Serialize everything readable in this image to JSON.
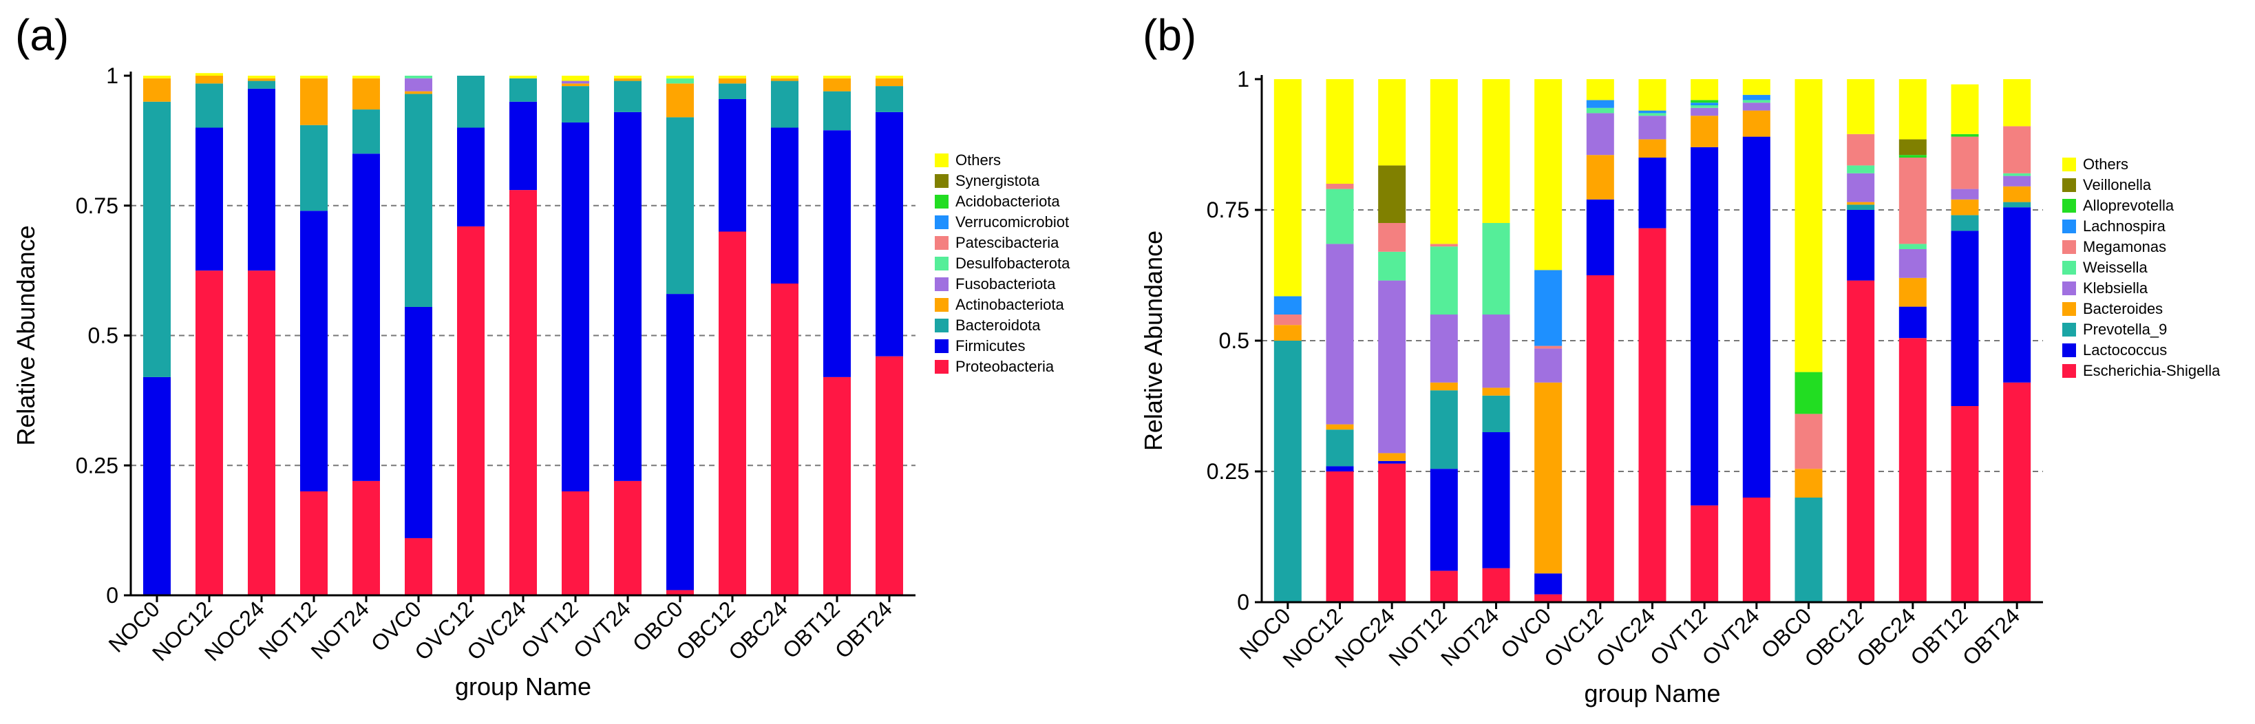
{
  "chart_data": [
    {
      "type": "bar",
      "stacked": true,
      "panel_label": "(a)",
      "xlabel": "group Name",
      "ylabel": "Relative Abundance",
      "ylim": [
        0,
        1
      ],
      "yticks": [
        0,
        0.25,
        0.5,
        0.75,
        1
      ],
      "ytick_labels": [
        "0",
        "0.25",
        "0.5",
        "0.75",
        "1"
      ],
      "grid": "horizontal-dashed",
      "legend_position": "right",
      "categories": [
        "NOC0",
        "NOC12",
        "NOC24",
        "NOT12",
        "NOT24",
        "OVC0",
        "OVC12",
        "OVC24",
        "OVT12",
        "OVT24",
        "OBC0",
        "OBC12",
        "OBC24",
        "OBT12",
        "OBT24"
      ],
      "series": [
        {
          "name": "Proteobacteria",
          "color": "#ff1744",
          "values": [
            0.0,
            0.625,
            0.625,
            0.2,
            0.22,
            0.11,
            0.71,
            0.78,
            0.2,
            0.22,
            0.01,
            0.7,
            0.6,
            0.42,
            0.46
          ]
        },
        {
          "name": "Firmicutes",
          "color": "#0000ee",
          "values": [
            0.42,
            0.275,
            0.35,
            0.54,
            0.63,
            0.445,
            0.19,
            0.17,
            0.71,
            0.71,
            0.57,
            0.255,
            0.3,
            0.475,
            0.47
          ]
        },
        {
          "name": "Bacteroidota",
          "color": "#1aa5a5",
          "values": [
            0.53,
            0.085,
            0.015,
            0.165,
            0.085,
            0.41,
            0.1,
            0.045,
            0.07,
            0.06,
            0.34,
            0.03,
            0.09,
            0.075,
            0.05
          ]
        },
        {
          "name": "Actinobacteriota",
          "color": "#ffa500",
          "values": [
            0.045,
            0.015,
            0.005,
            0.09,
            0.06,
            0.005,
            0.0,
            0.0,
            0.005,
            0.005,
            0.065,
            0.01,
            0.005,
            0.025,
            0.015
          ]
        },
        {
          "name": "Fusobacteriota",
          "color": "#a070e0",
          "values": [
            0.0,
            0.0,
            0.0,
            0.0,
            0.0,
            0.025,
            0.0,
            0.0,
            0.005,
            0.0,
            0.0,
            0.0,
            0.0,
            0.0,
            0.0
          ]
        },
        {
          "name": "Desulfobacterota",
          "color": "#55ee99",
          "values": [
            0.0,
            0.0,
            0.0,
            0.0,
            0.0,
            0.005,
            0.0,
            0.0,
            0.0,
            0.0,
            0.01,
            0.0,
            0.0,
            0.0,
            0.0
          ]
        },
        {
          "name": "Patescibacteria",
          "color": "#f48080",
          "values": [
            0,
            0,
            0,
            0,
            0,
            0,
            0,
            0,
            0,
            0,
            0,
            0,
            0,
            0,
            0
          ]
        },
        {
          "name": "Verrucomicrobiot",
          "color": "#1e90ff",
          "values": [
            0,
            0,
            0,
            0,
            0,
            0,
            0,
            0,
            0,
            0,
            0,
            0,
            0,
            0,
            0
          ]
        },
        {
          "name": "Acidobacteriota",
          "color": "#22dd22",
          "values": [
            0,
            0,
            0,
            0,
            0,
            0,
            0,
            0,
            0,
            0,
            0,
            0,
            0,
            0,
            0
          ]
        },
        {
          "name": "Synergistota",
          "color": "#808000",
          "values": [
            0,
            0,
            0,
            0,
            0,
            0,
            0,
            0,
            0,
            0,
            0,
            0,
            0,
            0,
            0
          ]
        },
        {
          "name": "Others",
          "color": "#ffff00",
          "values": [
            0.005,
            0.005,
            0.005,
            0.005,
            0.005,
            0.0,
            0.0,
            0.005,
            0.01,
            0.005,
            0.005,
            0.005,
            0.005,
            0.005,
            0.005
          ]
        }
      ]
    },
    {
      "type": "bar",
      "stacked": true,
      "panel_label": "(b)",
      "xlabel": "group Name",
      "ylabel": "Relative Abundance",
      "ylim": [
        0,
        1
      ],
      "yticks": [
        0,
        0.25,
        0.5,
        0.75,
        1
      ],
      "ytick_labels": [
        "0",
        "0.25",
        "0.5",
        "0.75",
        "1"
      ],
      "grid": "horizontal-dashed",
      "legend_position": "right",
      "categories": [
        "NOC0",
        "NOC12",
        "NOC24",
        "NOT12",
        "NOT24",
        "OVC0",
        "OVC12",
        "OVC24",
        "OVT12",
        "OVT24",
        "OBC0",
        "OBC12",
        "OBC24",
        "OBT12",
        "OBT24"
      ],
      "series": [
        {
          "name": "Escherichia-Shigella",
          "color": "#ff1744",
          "values": [
            0.0,
            0.25,
            0.265,
            0.06,
            0.065,
            0.015,
            0.625,
            0.715,
            0.185,
            0.2,
            0.0,
            0.615,
            0.505,
            0.375,
            0.42
          ]
        },
        {
          "name": "Lactococcus",
          "color": "#0000ee",
          "values": [
            0.0,
            0.01,
            0.005,
            0.195,
            0.26,
            0.04,
            0.145,
            0.135,
            0.685,
            0.69,
            0.0,
            0.135,
            0.06,
            0.335,
            0.335
          ]
        },
        {
          "name": "Prevotella_9",
          "color": "#1aa5a5",
          "values": [
            0.5,
            0.07,
            0.0,
            0.15,
            0.07,
            0.0,
            0.0,
            0.0,
            0.0,
            0.0,
            0.2,
            0.01,
            0.0,
            0.03,
            0.01
          ]
        },
        {
          "name": "Bacteroides",
          "color": "#ffa500",
          "values": [
            0.03,
            0.01,
            0.015,
            0.015,
            0.015,
            0.365,
            0.085,
            0.035,
            0.06,
            0.05,
            0.055,
            0.005,
            0.055,
            0.03,
            0.03
          ]
        },
        {
          "name": "Klebsiella",
          "color": "#a070e0",
          "values": [
            0.0,
            0.345,
            0.33,
            0.13,
            0.14,
            0.065,
            0.08,
            0.045,
            0.015,
            0.015,
            0.0,
            0.055,
            0.055,
            0.02,
            0.02
          ]
        },
        {
          "name": "Weissella",
          "color": "#55ee99",
          "values": [
            0.0,
            0.105,
            0.055,
            0.13,
            0.175,
            0.0,
            0.01,
            0.005,
            0.005,
            0.005,
            0.0,
            0.015,
            0.01,
            0.0,
            0.005
          ]
        },
        {
          "name": "Megamonas",
          "color": "#f48080",
          "values": [
            0.02,
            0.01,
            0.055,
            0.005,
            0.0,
            0.005,
            0.0,
            0.0,
            0.0,
            0.0,
            0.105,
            0.06,
            0.165,
            0.1,
            0.09
          ]
        },
        {
          "name": "Lachnospira",
          "color": "#1e90ff",
          "values": [
            0.035,
            0.0,
            0.0,
            0.0,
            0.0,
            0.145,
            0.015,
            0.005,
            0.005,
            0.01,
            0.0,
            0.0,
            0.0,
            0.0,
            0.0
          ]
        },
        {
          "name": "Alloprevotella",
          "color": "#22dd22",
          "values": [
            0.0,
            0.0,
            0.0,
            0.0,
            0.0,
            0.0,
            0.0,
            0.0,
            0.005,
            0.0,
            0.08,
            0.0,
            0.005,
            0.005,
            0.0
          ]
        },
        {
          "name": "Veillonella",
          "color": "#808000",
          "values": [
            0.0,
            0.0,
            0.11,
            0.0,
            0.0,
            0.0,
            0.0,
            0.0,
            0.0,
            0.0,
            0.0,
            0.0,
            0.03,
            0.0,
            0.0
          ]
        },
        {
          "name": "Others",
          "color": "#ffff00",
          "values": [
            0.415,
            0.2,
            0.165,
            0.315,
            0.275,
            0.365,
            0.04,
            0.06,
            0.04,
            0.03,
            0.56,
            0.105,
            0.115,
            0.095,
            0.09
          ]
        }
      ]
    }
  ]
}
